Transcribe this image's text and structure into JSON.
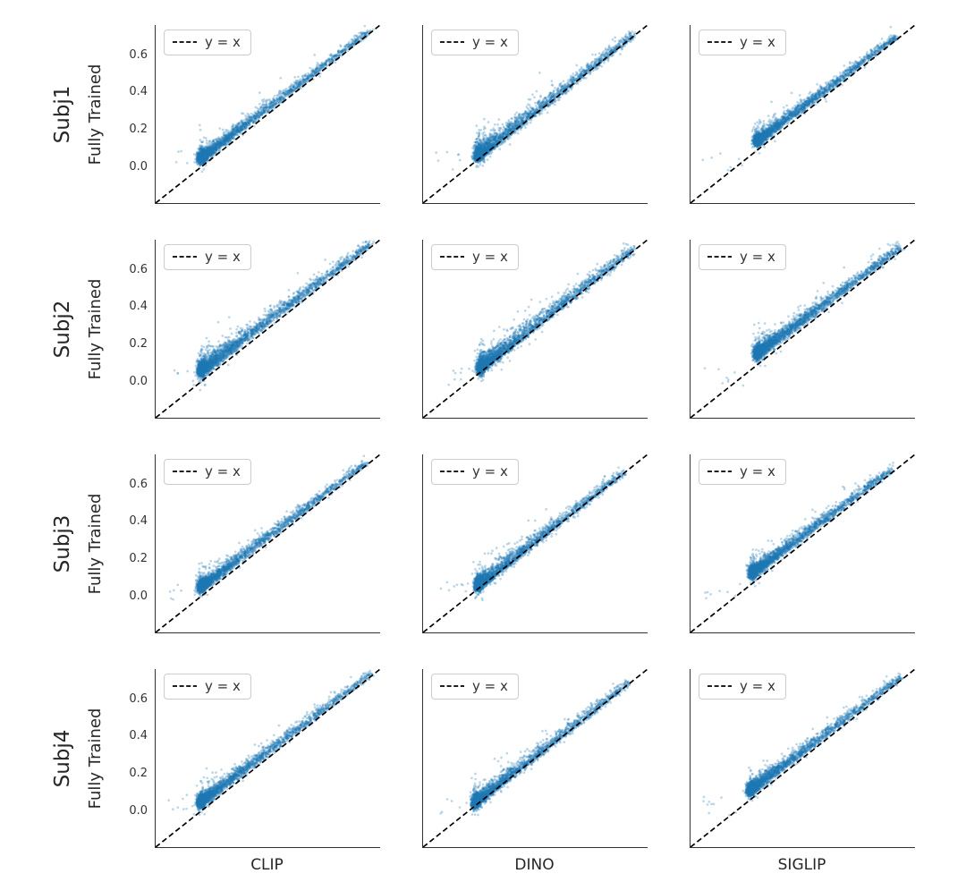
{
  "chart_data": {
    "type": "scatter",
    "title": "",
    "ylabel": "Fully Trained",
    "legend_label": "y = x",
    "rows": [
      {
        "label": "Subj1"
      },
      {
        "label": "Subj2"
      },
      {
        "label": "Subj3"
      },
      {
        "label": "Subj4"
      }
    ],
    "cols": [
      {
        "label": "CLIP"
      },
      {
        "label": "DINO"
      },
      {
        "label": "SIGLIP"
      }
    ],
    "axis_range": [
      -0.19,
      0.76
    ],
    "yticks": [
      0.0,
      0.2,
      0.4,
      0.6
    ],
    "ytick_labels": [
      "0.0",
      "0.2",
      "0.4",
      "0.6"
    ],
    "grid": false,
    "legend_position": "upper left",
    "point_color": "#1f77b4",
    "point_alpha": 0.3,
    "point_radius": 1.35,
    "identity_line_color": "#000000",
    "identity_line_dash": [
      6,
      3.5
    ],
    "spine_color": "#333333",
    "text_color": "#262626",
    "legend_border_color": "#cccccc",
    "panels": [
      {
        "row": "Subj1",
        "col": "CLIP",
        "seed": 11,
        "n": 2800,
        "t_min": 0.0,
        "t_max": 0.72,
        "t_pow": 3.2,
        "bias": 0.04,
        "sigma": 0.022,
        "below_frac": 0.3,
        "n_stray": 10
      },
      {
        "row": "Subj1",
        "col": "DINO",
        "seed": 12,
        "n": 2800,
        "t_min": 0.04,
        "t_max": 0.7,
        "t_pow": 3.0,
        "bias": 0.018,
        "sigma": 0.03,
        "below_frac": 0.45,
        "n_stray": 8
      },
      {
        "row": "Subj1",
        "col": "SIGLIP",
        "seed": 13,
        "n": 2800,
        "t_min": 0.09,
        "t_max": 0.68,
        "t_pow": 3.0,
        "bias": 0.045,
        "sigma": 0.022,
        "below_frac": 0.25,
        "n_stray": 8
      },
      {
        "row": "Subj2",
        "col": "CLIP",
        "seed": 21,
        "n": 3000,
        "t_min": 0.0,
        "t_max": 0.72,
        "t_pow": 2.8,
        "bias": 0.05,
        "sigma": 0.03,
        "below_frac": 0.3,
        "n_stray": 10
      },
      {
        "row": "Subj2",
        "col": "DINO",
        "seed": 22,
        "n": 3000,
        "t_min": 0.05,
        "t_max": 0.7,
        "t_pow": 2.8,
        "bias": 0.022,
        "sigma": 0.032,
        "below_frac": 0.45,
        "n_stray": 8
      },
      {
        "row": "Subj2",
        "col": "SIGLIP",
        "seed": 23,
        "n": 3000,
        "t_min": 0.09,
        "t_max": 0.7,
        "t_pow": 2.8,
        "bias": 0.055,
        "sigma": 0.028,
        "below_frac": 0.25,
        "n_stray": 8
      },
      {
        "row": "Subj3",
        "col": "CLIP",
        "seed": 31,
        "n": 2800,
        "t_min": 0.0,
        "t_max": 0.7,
        "t_pow": 3.2,
        "bias": 0.042,
        "sigma": 0.022,
        "below_frac": 0.3,
        "n_stray": 12
      },
      {
        "row": "Subj3",
        "col": "DINO",
        "seed": 32,
        "n": 2800,
        "t_min": 0.04,
        "t_max": 0.66,
        "t_pow": 3.0,
        "bias": 0.016,
        "sigma": 0.028,
        "below_frac": 0.5,
        "n_stray": 10
      },
      {
        "row": "Subj3",
        "col": "SIGLIP",
        "seed": 33,
        "n": 2800,
        "t_min": 0.07,
        "t_max": 0.66,
        "t_pow": 3.0,
        "bias": 0.05,
        "sigma": 0.025,
        "below_frac": 0.25,
        "n_stray": 8
      },
      {
        "row": "Subj4",
        "col": "CLIP",
        "seed": 41,
        "n": 2800,
        "t_min": 0.0,
        "t_max": 0.72,
        "t_pow": 3.2,
        "bias": 0.04,
        "sigma": 0.024,
        "below_frac": 0.3,
        "n_stray": 12
      },
      {
        "row": "Subj4",
        "col": "DINO",
        "seed": 42,
        "n": 2800,
        "t_min": 0.03,
        "t_max": 0.68,
        "t_pow": 3.2,
        "bias": 0.014,
        "sigma": 0.026,
        "below_frac": 0.5,
        "n_stray": 10
      },
      {
        "row": "Subj4",
        "col": "SIGLIP",
        "seed": 43,
        "n": 2800,
        "t_min": 0.06,
        "t_max": 0.7,
        "t_pow": 3.0,
        "bias": 0.045,
        "sigma": 0.024,
        "below_frac": 0.3,
        "n_stray": 10
      }
    ]
  }
}
